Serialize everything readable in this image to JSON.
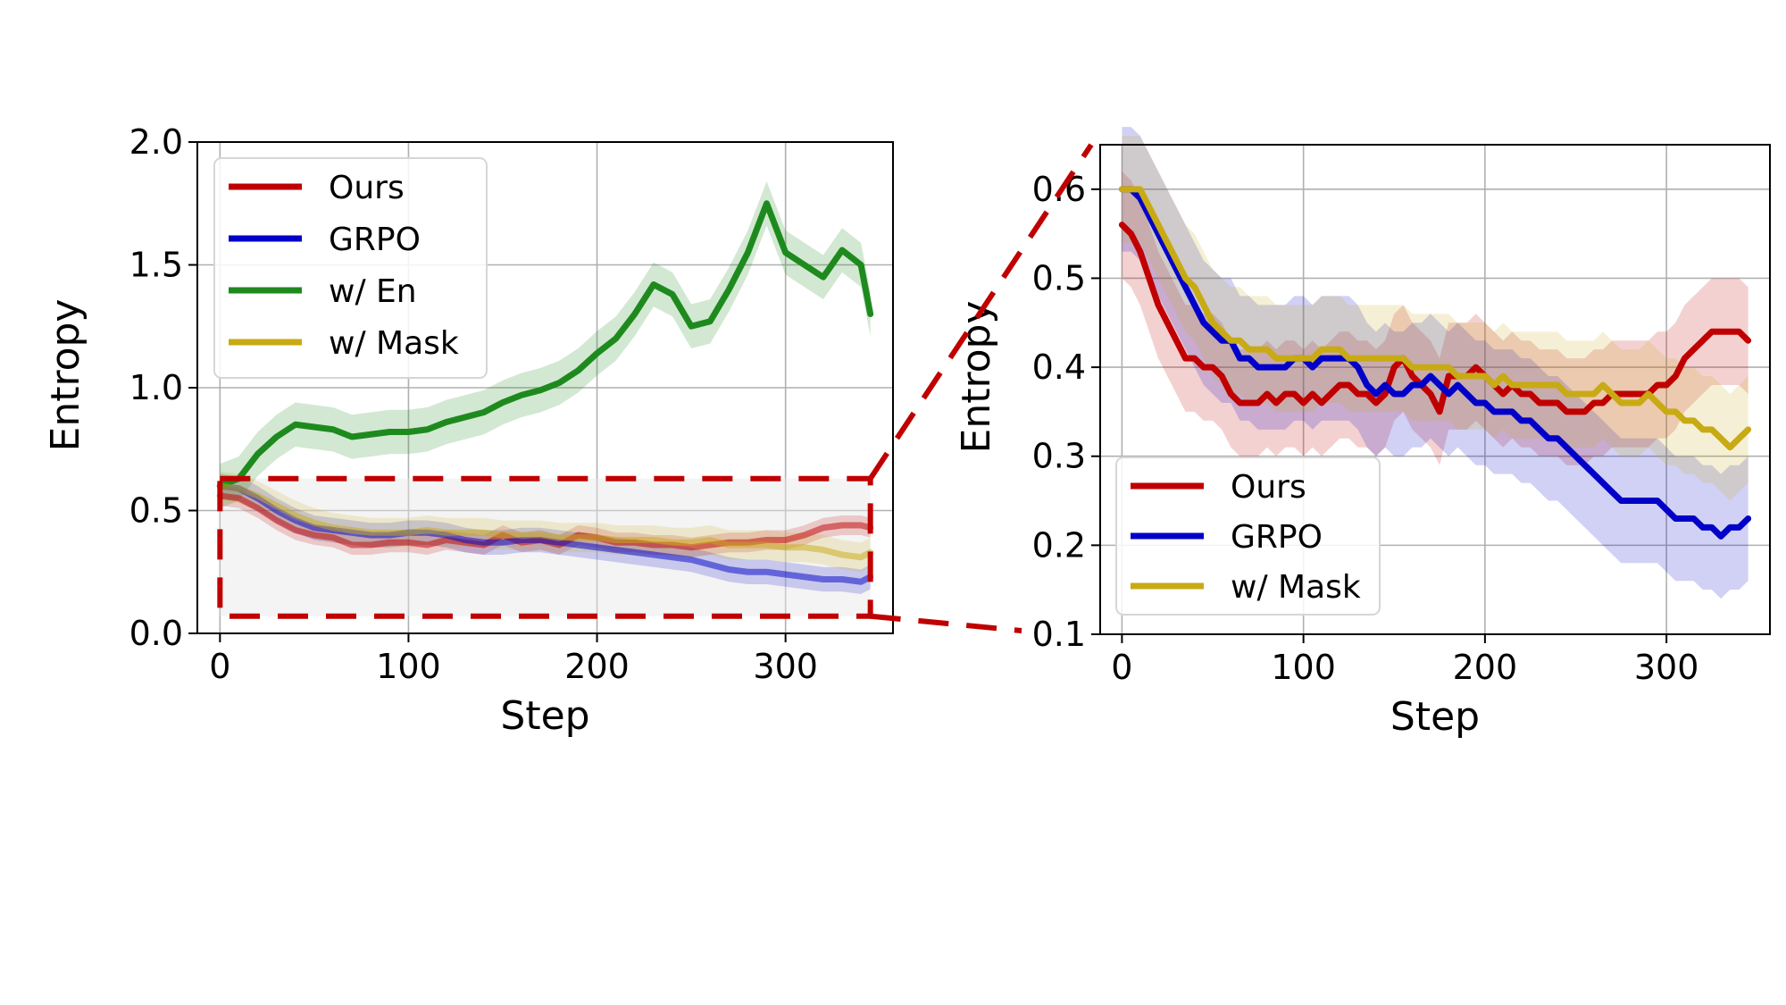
{
  "colors": {
    "Ours": "#c00000",
    "GRPO": "#0000c8",
    "w/ En": "#1e8a1e",
    "w/ Mask": "#c8aa14",
    "zoom_box": "#c00000"
  },
  "chart_data": [
    {
      "type": "line",
      "xlabel": "Step",
      "ylabel": "Entropy",
      "xlim": [
        -12,
        357
      ],
      "ylim": [
        0.0,
        2.0
      ],
      "xticks": [
        0,
        100,
        200,
        300
      ],
      "yticks": [
        0.0,
        0.5,
        1.0,
        1.5,
        2.0
      ],
      "ytick_labels": [
        "0.0",
        "0.5",
        "1.0",
        "1.5",
        "2.0"
      ],
      "grid": true,
      "legend": "top-left",
      "legend_entries": [
        "Ours",
        "GRPO",
        "w/ En",
        "w/ Mask"
      ],
      "zoom_region": {
        "x": [
          0,
          345
        ],
        "y": [
          0.07,
          0.63
        ]
      },
      "series": [
        {
          "name": "Ours",
          "x": [
            0,
            10,
            20,
            30,
            40,
            50,
            60,
            70,
            80,
            90,
            100,
            110,
            120,
            130,
            140,
            150,
            160,
            170,
            180,
            190,
            200,
            210,
            220,
            230,
            240,
            250,
            260,
            270,
            280,
            290,
            300,
            310,
            320,
            330,
            340,
            345
          ],
          "y": [
            0.56,
            0.55,
            0.51,
            0.46,
            0.42,
            0.4,
            0.39,
            0.36,
            0.36,
            0.37,
            0.37,
            0.36,
            0.38,
            0.37,
            0.36,
            0.4,
            0.37,
            0.38,
            0.36,
            0.4,
            0.39,
            0.37,
            0.37,
            0.36,
            0.36,
            0.35,
            0.36,
            0.37,
            0.37,
            0.38,
            0.38,
            0.4,
            0.43,
            0.44,
            0.44,
            0.43
          ],
          "band": 0.04
        },
        {
          "name": "GRPO",
          "x": [
            0,
            10,
            20,
            30,
            40,
            50,
            60,
            70,
            80,
            90,
            100,
            110,
            120,
            130,
            140,
            150,
            160,
            170,
            180,
            190,
            200,
            210,
            220,
            230,
            240,
            250,
            260,
            270,
            280,
            290,
            300,
            310,
            320,
            330,
            340,
            345
          ],
          "y": [
            0.6,
            0.59,
            0.55,
            0.5,
            0.46,
            0.43,
            0.42,
            0.41,
            0.4,
            0.4,
            0.41,
            0.41,
            0.4,
            0.38,
            0.37,
            0.37,
            0.38,
            0.38,
            0.37,
            0.36,
            0.35,
            0.34,
            0.33,
            0.32,
            0.31,
            0.3,
            0.28,
            0.26,
            0.25,
            0.25,
            0.24,
            0.23,
            0.22,
            0.22,
            0.21,
            0.23
          ],
          "band": 0.05
        },
        {
          "name": "w/ En",
          "x": [
            0,
            10,
            20,
            30,
            40,
            50,
            60,
            70,
            80,
            90,
            100,
            110,
            120,
            130,
            140,
            150,
            160,
            170,
            180,
            190,
            200,
            210,
            220,
            230,
            240,
            250,
            260,
            270,
            280,
            290,
            300,
            310,
            320,
            330,
            340,
            345
          ],
          "y": [
            0.6,
            0.63,
            0.73,
            0.8,
            0.85,
            0.84,
            0.83,
            0.8,
            0.81,
            0.82,
            0.82,
            0.83,
            0.86,
            0.88,
            0.9,
            0.94,
            0.97,
            0.99,
            1.02,
            1.07,
            1.14,
            1.2,
            1.3,
            1.42,
            1.38,
            1.25,
            1.27,
            1.4,
            1.55,
            1.75,
            1.55,
            1.5,
            1.45,
            1.56,
            1.5,
            1.3
          ],
          "band": 0.09
        },
        {
          "name": "w/ Mask",
          "x": [
            0,
            10,
            20,
            30,
            40,
            50,
            60,
            70,
            80,
            90,
            100,
            110,
            120,
            130,
            140,
            150,
            160,
            170,
            180,
            190,
            200,
            210,
            220,
            230,
            240,
            250,
            260,
            270,
            280,
            290,
            300,
            310,
            320,
            330,
            340,
            345
          ],
          "y": [
            0.6,
            0.59,
            0.56,
            0.52,
            0.48,
            0.45,
            0.43,
            0.42,
            0.41,
            0.41,
            0.41,
            0.42,
            0.41,
            0.41,
            0.41,
            0.4,
            0.4,
            0.4,
            0.39,
            0.39,
            0.39,
            0.38,
            0.38,
            0.38,
            0.37,
            0.37,
            0.38,
            0.36,
            0.36,
            0.36,
            0.35,
            0.35,
            0.34,
            0.32,
            0.31,
            0.33
          ],
          "band": 0.06
        }
      ]
    },
    {
      "type": "line",
      "xlabel": "Step",
      "ylabel": "Entropy",
      "xlim": [
        -12,
        357
      ],
      "ylim": [
        0.1,
        0.65
      ],
      "xticks": [
        0,
        100,
        200,
        300
      ],
      "yticks": [
        0.1,
        0.2,
        0.3,
        0.4,
        0.5,
        0.6
      ],
      "ytick_labels": [
        "0.1",
        "0.2",
        "0.3",
        "0.4",
        "0.5",
        "0.6"
      ],
      "grid": true,
      "legend": "bottom-left",
      "legend_entries": [
        "Ours",
        "GRPO",
        "w/ Mask"
      ],
      "series": [
        {
          "name": "Ours",
          "x": [
            0,
            5,
            10,
            15,
            20,
            25,
            30,
            35,
            40,
            45,
            50,
            55,
            60,
            65,
            70,
            75,
            80,
            85,
            90,
            95,
            100,
            105,
            110,
            115,
            120,
            125,
            130,
            135,
            140,
            145,
            150,
            155,
            160,
            165,
            170,
            175,
            180,
            185,
            190,
            195,
            200,
            205,
            210,
            215,
            220,
            225,
            230,
            235,
            240,
            245,
            250,
            255,
            260,
            265,
            270,
            275,
            280,
            285,
            290,
            295,
            300,
            305,
            310,
            315,
            320,
            325,
            330,
            335,
            340,
            345
          ],
          "y": [
            0.56,
            0.55,
            0.53,
            0.5,
            0.47,
            0.45,
            0.43,
            0.41,
            0.41,
            0.4,
            0.4,
            0.39,
            0.37,
            0.36,
            0.36,
            0.36,
            0.37,
            0.36,
            0.37,
            0.37,
            0.36,
            0.37,
            0.36,
            0.37,
            0.38,
            0.38,
            0.37,
            0.37,
            0.36,
            0.37,
            0.4,
            0.41,
            0.39,
            0.38,
            0.37,
            0.35,
            0.39,
            0.39,
            0.39,
            0.4,
            0.39,
            0.38,
            0.37,
            0.38,
            0.37,
            0.37,
            0.36,
            0.36,
            0.36,
            0.35,
            0.35,
            0.35,
            0.36,
            0.36,
            0.37,
            0.37,
            0.37,
            0.37,
            0.37,
            0.38,
            0.38,
            0.39,
            0.41,
            0.42,
            0.43,
            0.44,
            0.44,
            0.44,
            0.44,
            0.43
          ],
          "band": 0.06
        },
        {
          "name": "GRPO",
          "x": [
            0,
            5,
            10,
            15,
            20,
            25,
            30,
            35,
            40,
            45,
            50,
            55,
            60,
            65,
            70,
            75,
            80,
            85,
            90,
            95,
            100,
            105,
            110,
            115,
            120,
            125,
            130,
            135,
            140,
            145,
            150,
            155,
            160,
            165,
            170,
            175,
            180,
            185,
            190,
            195,
            200,
            205,
            210,
            215,
            220,
            225,
            230,
            235,
            240,
            245,
            250,
            255,
            260,
            265,
            270,
            275,
            280,
            285,
            290,
            295,
            300,
            305,
            310,
            315,
            320,
            325,
            330,
            335,
            340,
            345
          ],
          "y": [
            0.6,
            0.6,
            0.59,
            0.57,
            0.55,
            0.53,
            0.51,
            0.49,
            0.47,
            0.45,
            0.44,
            0.43,
            0.43,
            0.41,
            0.41,
            0.4,
            0.4,
            0.4,
            0.4,
            0.41,
            0.41,
            0.4,
            0.41,
            0.41,
            0.41,
            0.41,
            0.4,
            0.38,
            0.37,
            0.38,
            0.37,
            0.37,
            0.38,
            0.38,
            0.39,
            0.38,
            0.37,
            0.38,
            0.37,
            0.36,
            0.36,
            0.35,
            0.35,
            0.35,
            0.34,
            0.34,
            0.33,
            0.32,
            0.32,
            0.31,
            0.3,
            0.29,
            0.28,
            0.27,
            0.26,
            0.25,
            0.25,
            0.25,
            0.25,
            0.25,
            0.24,
            0.23,
            0.23,
            0.23,
            0.22,
            0.22,
            0.21,
            0.22,
            0.22,
            0.23
          ],
          "band": 0.07
        },
        {
          "name": "w/ Mask",
          "x": [
            0,
            5,
            10,
            15,
            20,
            25,
            30,
            35,
            40,
            45,
            50,
            55,
            60,
            65,
            70,
            75,
            80,
            85,
            90,
            95,
            100,
            105,
            110,
            115,
            120,
            125,
            130,
            135,
            140,
            145,
            150,
            155,
            160,
            165,
            170,
            175,
            180,
            185,
            190,
            195,
            200,
            205,
            210,
            215,
            220,
            225,
            230,
            235,
            240,
            245,
            250,
            255,
            260,
            265,
            270,
            275,
            280,
            285,
            290,
            295,
            300,
            305,
            310,
            315,
            320,
            325,
            330,
            335,
            340,
            345
          ],
          "y": [
            0.6,
            0.6,
            0.6,
            0.58,
            0.56,
            0.54,
            0.52,
            0.5,
            0.49,
            0.47,
            0.45,
            0.44,
            0.43,
            0.43,
            0.42,
            0.42,
            0.42,
            0.41,
            0.41,
            0.41,
            0.41,
            0.41,
            0.42,
            0.42,
            0.42,
            0.41,
            0.41,
            0.41,
            0.41,
            0.41,
            0.41,
            0.41,
            0.4,
            0.4,
            0.4,
            0.4,
            0.4,
            0.39,
            0.39,
            0.39,
            0.39,
            0.38,
            0.39,
            0.38,
            0.38,
            0.38,
            0.38,
            0.38,
            0.38,
            0.37,
            0.37,
            0.37,
            0.37,
            0.38,
            0.37,
            0.36,
            0.36,
            0.36,
            0.37,
            0.36,
            0.35,
            0.35,
            0.34,
            0.34,
            0.33,
            0.33,
            0.32,
            0.31,
            0.32,
            0.33
          ],
          "band": 0.06
        }
      ]
    }
  ]
}
